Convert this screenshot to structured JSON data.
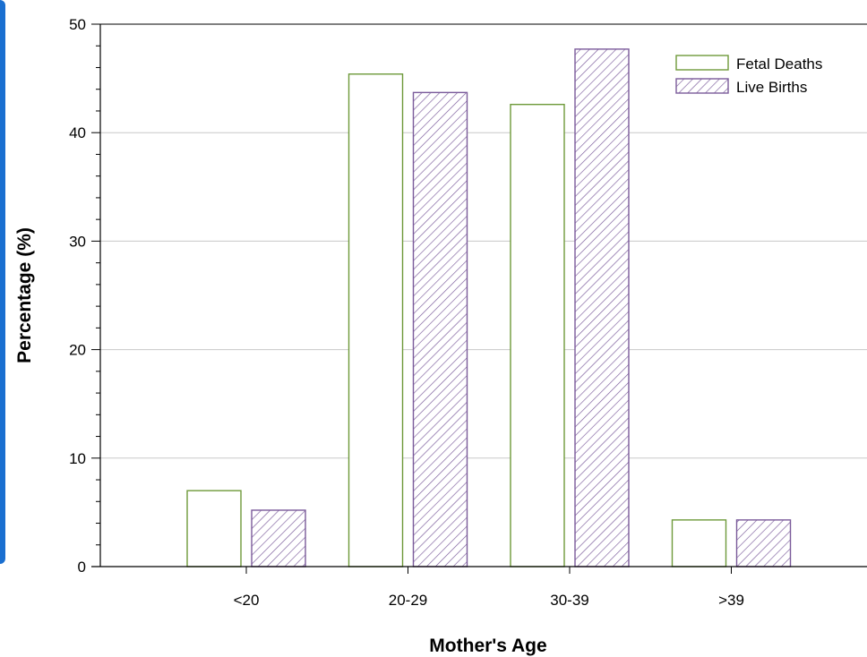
{
  "chart_data": {
    "type": "bar",
    "title": "",
    "xlabel": "Mother's Age",
    "ylabel": "Percentage (%)",
    "ylim": [
      0,
      50
    ],
    "yticks": [
      0,
      10,
      20,
      30,
      40,
      50
    ],
    "categories": [
      "<20",
      "20-29",
      "30-39",
      ">39"
    ],
    "series": [
      {
        "name": "Fetal Deaths",
        "values": [
          7.0,
          45.4,
          42.6,
          4.3
        ],
        "color": "#6e9a3a",
        "pattern": "none"
      },
      {
        "name": "Live Births",
        "values": [
          5.2,
          43.7,
          47.7,
          4.3
        ],
        "color": "#7a5a9a",
        "pattern": "diagonal-hatch"
      }
    ],
    "grid": true,
    "legend_position": "top-right"
  }
}
